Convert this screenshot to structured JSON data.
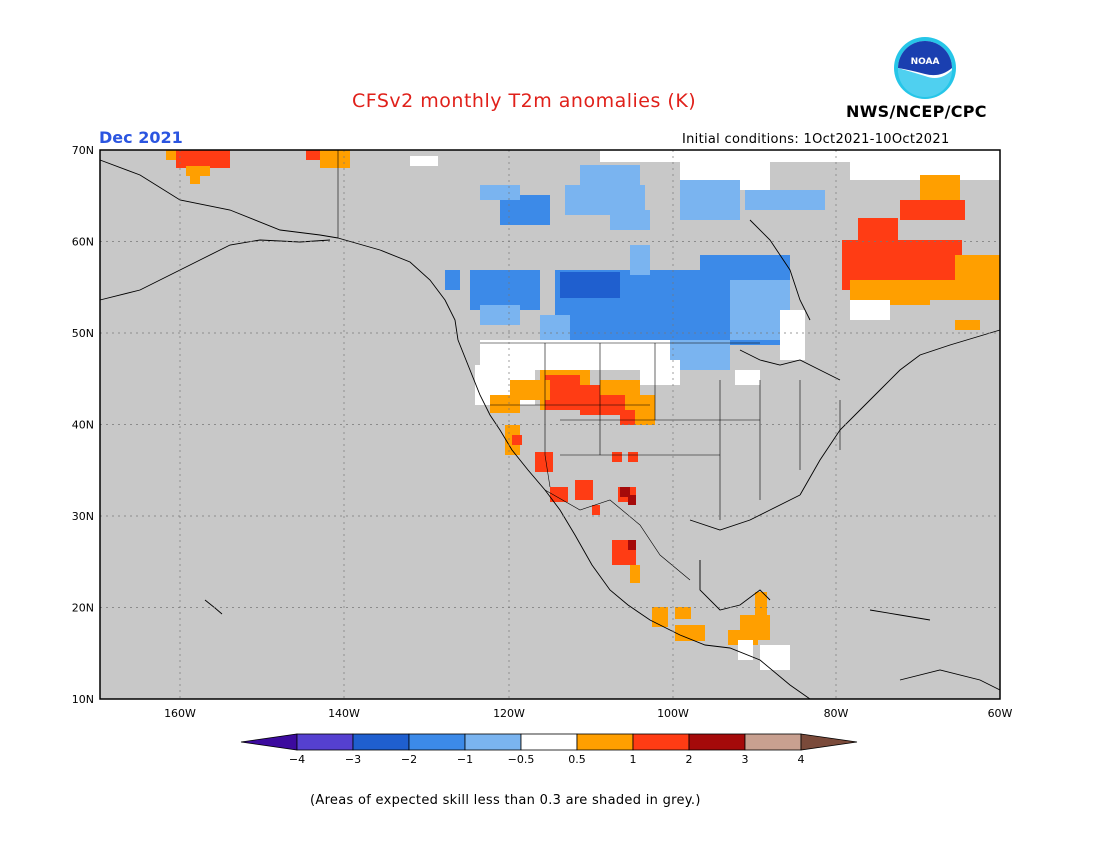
{
  "header": {
    "title": "CFSv2 monthly T2m anomalies (K)",
    "agency": "NWS/NCEP/CPC",
    "logo_text": "NOAA",
    "month": "Dec 2021",
    "initial_conditions": "Initial conditions: 1Oct2021-10Oct2021"
  },
  "map": {
    "lat_labels": [
      "70N",
      "60N",
      "50N",
      "40N",
      "30N",
      "20N",
      "10N"
    ],
    "lon_labels": [
      "160W",
      "140W",
      "120W",
      "100W",
      "80W",
      "60W"
    ],
    "background_color": "#c8c8c8"
  },
  "colorbar": {
    "tick_labels": [
      "−4",
      "−3",
      "−2",
      "−1",
      "−0.5",
      "0.5",
      "1",
      "2",
      "3",
      "4"
    ],
    "colors": [
      "#3c0a9e",
      "#5540d0",
      "#1f5fcf",
      "#3c8ae8",
      "#7ab4f0",
      "#ffffff",
      "#ff9f00",
      "#ff3c14",
      "#a50a0a",
      "#c8a090",
      "#7a4a3a"
    ]
  },
  "footnote": "(Areas of expected skill less than 0.3 are shaded in grey.)"
}
